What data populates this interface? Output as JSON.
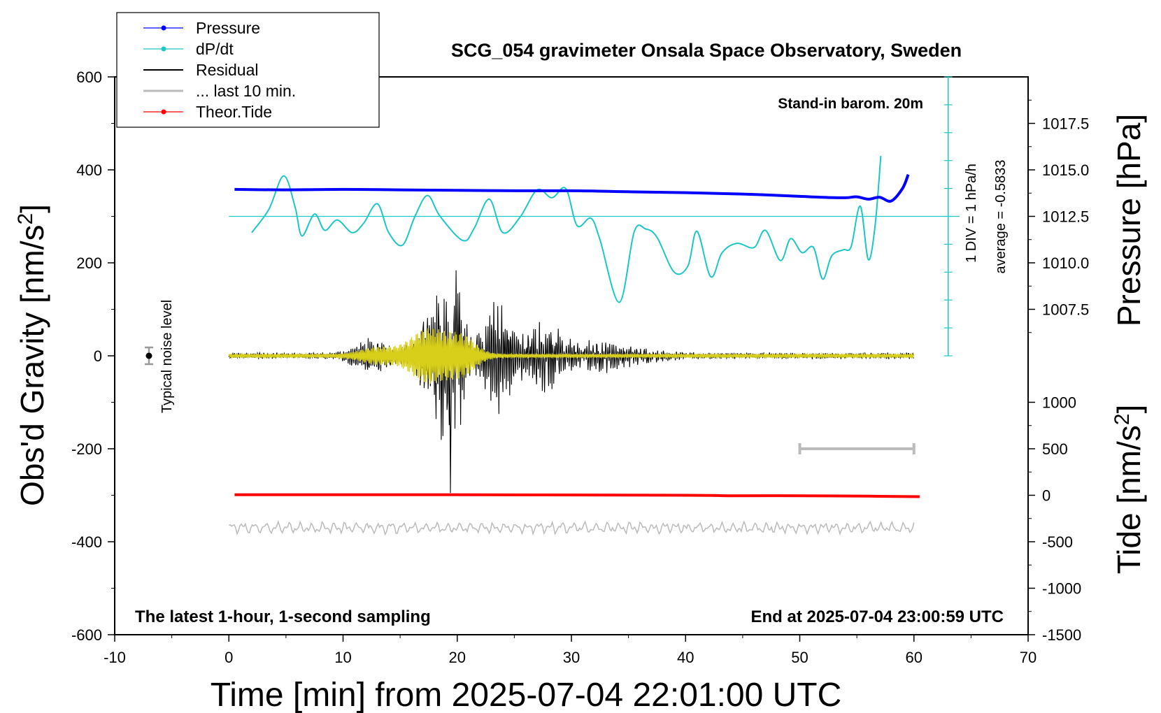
{
  "chart_data": {
    "type": "line",
    "title": "SCG_054 gravimeter Onsala Space Observatory, Sweden",
    "xlabel": "Time [min] from 2025-07-04 22:01:00 UTC",
    "ylabel_left": "Obs'd Gravity [nm/s",
    "ylabel_left_sup": "2",
    "ylabel_left_end": "]",
    "ylabel_pressure": "Pressure [hPa]",
    "ylabel_tide": "Tide [nm/s",
    "ylabel_tide_sup": "2",
    "ylabel_tide_end": "]",
    "xlim": [
      -10,
      70
    ],
    "ylim": [
      -600,
      600
    ],
    "xticks": [
      -10,
      0,
      10,
      20,
      30,
      40,
      50,
      60,
      70
    ],
    "yticks": [
      600,
      400,
      200,
      0,
      -200,
      -400,
      -600
    ],
    "pressure_ticks": [
      {
        "label": "1017.5",
        "g": 500
      },
      {
        "label": "1015.0",
        "g": 400
      },
      {
        "label": "1012.5",
        "g": 300
      },
      {
        "label": "1010.0",
        "g": 200
      },
      {
        "label": "1007.5",
        "g": 100
      }
    ],
    "tide_ticks": [
      {
        "label": "1000",
        "g": -100
      },
      {
        "label": "500",
        "g": -200
      },
      {
        "label": "0",
        "g": -300
      },
      {
        "label": "-500",
        "g": -400
      },
      {
        "label": "-1000",
        "g": -500
      },
      {
        "label": "-1500",
        "g": -600
      }
    ],
    "legend": [
      {
        "label": "Pressure",
        "color": "#0000ff",
        "marker": true
      },
      {
        "label": "dP/dt",
        "color": "#1ec6c6",
        "marker": true
      },
      {
        "label": "Residual",
        "color": "#000000",
        "marker": false
      },
      {
        "label": "... last 10 min.",
        "color": "#bbbbbb",
        "marker": false
      },
      {
        "label": "Theor.Tide",
        "color": "#ff0000",
        "marker": true
      }
    ],
    "annotations": {
      "stand_in": "Stand-in barom. 20m",
      "div_note": "1 DIV = 1 hPa/h",
      "average_note": "average = -0.5833",
      "noise_label": "Typical noise level",
      "bottom_left": "The latest 1-hour, 1-second sampling",
      "bottom_right": "End at 2025-07-04 23:00:59 UTC"
    },
    "pressure_series": {
      "name": "Pressure",
      "color": "#0000ff",
      "x": [
        0.5,
        5,
        10,
        15,
        20,
        25,
        30,
        35,
        40,
        45,
        50,
        52,
        54,
        55,
        56,
        57,
        58,
        59,
        59.5
      ],
      "y": [
        358,
        357,
        358,
        357,
        356,
        355,
        355,
        353,
        351,
        348,
        343,
        341,
        340,
        342,
        337,
        341,
        333,
        360,
        390
      ]
    },
    "dpdt_series": {
      "name": "dP/dt",
      "color": "#1ec6c6",
      "baseline": 300,
      "x": [
        2,
        3.5,
        4.8,
        5.8,
        6.4,
        7.5,
        8.4,
        9.5,
        10.8,
        11.8,
        13,
        14,
        15.2,
        16.3,
        17.4,
        18.5,
        20.5,
        21.5,
        22.8,
        24,
        25.5,
        27,
        28.3,
        29.5,
        30.5,
        31.7,
        32.5,
        34.2,
        35.5,
        36.5,
        37.5,
        39,
        40.2,
        41,
        42.2,
        43.2,
        44.5,
        46,
        47,
        48.3,
        49.2,
        50.2,
        51.2,
        52,
        52.8,
        53.8,
        54.5,
        55.3,
        56,
        56.6,
        57.1
      ],
      "y": [
        265,
        315,
        387,
        320,
        258,
        305,
        270,
        292,
        265,
        285,
        327,
        265,
        238,
        300,
        345,
        300,
        248,
        275,
        337,
        265,
        298,
        357,
        340,
        360,
        280,
        296,
        250,
        115,
        267,
        273,
        255,
        180,
        193,
        268,
        170,
        222,
        242,
        233,
        270,
        205,
        252,
        222,
        233,
        165,
        215,
        228,
        235,
        322,
        207,
        280,
        430
      ]
    },
    "residual_series": {
      "name": "Residual",
      "color": "#000000",
      "x_range": [
        0,
        60
      ],
      "envelope_max_abs": 300,
      "peak_x": 19.4
    },
    "last10_series": {
      "name": "... last 10 min.",
      "color": "#bbbbbb",
      "baseline": -370,
      "x_range": [
        0,
        60
      ]
    },
    "highpass_series": {
      "name": "filtered residual",
      "color": "#d8cf1a",
      "x_range": [
        0,
        60
      ]
    },
    "tide_series": {
      "name": "Theor.Tide",
      "color": "#ff0000",
      "x": [
        0.5,
        20,
        40,
        44,
        50,
        56,
        60.5
      ],
      "y": [
        -299,
        -299,
        -300,
        -301,
        -301,
        -302,
        -303
      ]
    },
    "noise_bar": {
      "x": -7,
      "y": 0,
      "err": 18
    },
    "ten_min_bar": {
      "x": [
        50,
        60
      ],
      "y": -200
    }
  }
}
